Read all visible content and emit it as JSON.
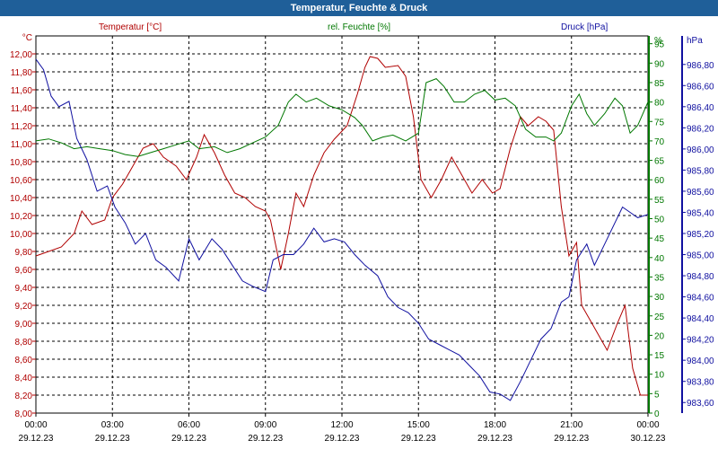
{
  "window": {
    "title": "Temperatur, Feuchte & Druck"
  },
  "colors": {
    "temp": "#b00000",
    "hum": "#007700",
    "press": "#1010a0",
    "grid": "#000000",
    "titlebar": "#1f5f99"
  },
  "chart_data": {
    "type": "line",
    "title": "Temperatur, Feuchte & Druck",
    "grid": true,
    "x": {
      "tick_labels": [
        [
          "00:00",
          "29.12.23"
        ],
        [
          "03:00",
          "29.12.23"
        ],
        [
          "06:00",
          "29.12.23"
        ],
        [
          "09:00",
          "29.12.23"
        ],
        [
          "12:00",
          "29.12.23"
        ],
        [
          "15:00",
          "29.12.23"
        ],
        [
          "18:00",
          "29.12.23"
        ],
        [
          "21:00",
          "29.12.23"
        ],
        [
          "00:00",
          "30.12.23"
        ]
      ],
      "range_hours": [
        0,
        24
      ]
    },
    "axes": {
      "temp": {
        "unit": "°C",
        "ylim": [
          8.0,
          12.0
        ],
        "ticks": [
          "12,00",
          "11,80",
          "11,60",
          "11,40",
          "11,20",
          "11,00",
          "10,80",
          "10,60",
          "10,40",
          "10,20",
          "10,00",
          "9,80",
          "9,60",
          "9,40",
          "9,20",
          "9,00",
          "8,80",
          "8,60",
          "8,40",
          "8,20",
          "8,00"
        ]
      },
      "hum": {
        "unit": "%",
        "ylim": [
          0,
          97
        ],
        "ticks": [
          "95",
          "90",
          "85",
          "80",
          "75",
          "70",
          "65",
          "60",
          "55",
          "50",
          "45",
          "40",
          "35",
          "30",
          "25",
          "20",
          "15",
          "10",
          "5",
          "0"
        ]
      },
      "press": {
        "unit": "hPa",
        "ylim": [
          983.5,
          986.9
        ],
        "ticks": [
          "986,80",
          "986,60",
          "986,40",
          "986,20",
          "986,00",
          "985,80",
          "985,60",
          "985,40",
          "985,20",
          "985,00",
          "984,80",
          "984,60",
          "984,40",
          "984,20",
          "984,00",
          "983,80",
          "983,60"
        ]
      }
    },
    "series": [
      {
        "name": "Temperatur [°C]",
        "axis": "temp",
        "points": [
          [
            0,
            9.75
          ],
          [
            0.5,
            9.8
          ],
          [
            1,
            9.85
          ],
          [
            1.5,
            10.0
          ],
          [
            1.8,
            10.25
          ],
          [
            2.2,
            10.1
          ],
          [
            2.7,
            10.15
          ],
          [
            3,
            10.4
          ],
          [
            3.4,
            10.55
          ],
          [
            3.8,
            10.75
          ],
          [
            4.2,
            10.95
          ],
          [
            4.6,
            11.0
          ],
          [
            5,
            10.85
          ],
          [
            5.5,
            10.75
          ],
          [
            5.9,
            10.6
          ],
          [
            6.3,
            10.85
          ],
          [
            6.6,
            11.1
          ],
          [
            7,
            10.9
          ],
          [
            7.4,
            10.65
          ],
          [
            7.8,
            10.45
          ],
          [
            8.2,
            10.4
          ],
          [
            8.6,
            10.3
          ],
          [
            9,
            10.25
          ],
          [
            9.2,
            10.15
          ],
          [
            9.6,
            9.6
          ],
          [
            9.9,
            10.0
          ],
          [
            10.2,
            10.45
          ],
          [
            10.5,
            10.3
          ],
          [
            10.9,
            10.65
          ],
          [
            11.3,
            10.9
          ],
          [
            11.7,
            11.05
          ],
          [
            12.2,
            11.2
          ],
          [
            12.6,
            11.55
          ],
          [
            12.9,
            11.85
          ],
          [
            13.1,
            11.97
          ],
          [
            13.4,
            11.95
          ],
          [
            13.7,
            11.85
          ],
          [
            14.2,
            11.87
          ],
          [
            14.5,
            11.75
          ],
          [
            14.8,
            11.3
          ],
          [
            15.1,
            10.6
          ],
          [
            15.5,
            10.4
          ],
          [
            15.9,
            10.6
          ],
          [
            16.3,
            10.85
          ],
          [
            16.7,
            10.65
          ],
          [
            17.1,
            10.45
          ],
          [
            17.5,
            10.6
          ],
          [
            17.9,
            10.45
          ],
          [
            18.2,
            10.5
          ],
          [
            18.6,
            10.95
          ],
          [
            19,
            11.3
          ],
          [
            19.3,
            11.2
          ],
          [
            19.7,
            11.3
          ],
          [
            20,
            11.25
          ],
          [
            20.3,
            11.15
          ],
          [
            20.6,
            10.3
          ],
          [
            20.9,
            9.75
          ],
          [
            21.2,
            9.9
          ],
          [
            21.4,
            9.2
          ],
          [
            21.8,
            9.0
          ],
          [
            22.1,
            8.85
          ],
          [
            22.4,
            8.7
          ],
          [
            22.8,
            9.0
          ],
          [
            23.1,
            9.2
          ],
          [
            23.4,
            8.5
          ],
          [
            23.7,
            8.2
          ],
          [
            24,
            8.2
          ]
        ]
      },
      {
        "name": "rel. Feuchte [%]",
        "axis": "hum",
        "points": [
          [
            0,
            70
          ],
          [
            0.5,
            70.5
          ],
          [
            1,
            69.5
          ],
          [
            1.5,
            68
          ],
          [
            2,
            68.5
          ],
          [
            2.5,
            68
          ],
          [
            3,
            67.5
          ],
          [
            3.5,
            66.5
          ],
          [
            4,
            66
          ],
          [
            4.5,
            67
          ],
          [
            5,
            68
          ],
          [
            5.5,
            69
          ],
          [
            6,
            70
          ],
          [
            6.4,
            68
          ],
          [
            7,
            68.5
          ],
          [
            7.5,
            67
          ],
          [
            8,
            68
          ],
          [
            8.5,
            69.5
          ],
          [
            9,
            71
          ],
          [
            9.5,
            74
          ],
          [
            9.9,
            80
          ],
          [
            10.2,
            82
          ],
          [
            10.6,
            80
          ],
          [
            11,
            81
          ],
          [
            11.5,
            79
          ],
          [
            12,
            78
          ],
          [
            12.5,
            76
          ],
          [
            12.8,
            74
          ],
          [
            13.2,
            70
          ],
          [
            13.6,
            71
          ],
          [
            14,
            71.5
          ],
          [
            14.5,
            70
          ],
          [
            15,
            72
          ],
          [
            15.3,
            85
          ],
          [
            15.7,
            86
          ],
          [
            16,
            84
          ],
          [
            16.4,
            80
          ],
          [
            16.8,
            80
          ],
          [
            17.2,
            82
          ],
          [
            17.6,
            83
          ],
          [
            18,
            80.5
          ],
          [
            18.4,
            81
          ],
          [
            18.8,
            79
          ],
          [
            19.2,
            73
          ],
          [
            19.6,
            71
          ],
          [
            20,
            71
          ],
          [
            20.3,
            70
          ],
          [
            20.6,
            72
          ],
          [
            21,
            79
          ],
          [
            21.3,
            82
          ],
          [
            21.6,
            77
          ],
          [
            21.9,
            74
          ],
          [
            22.3,
            77
          ],
          [
            22.7,
            81
          ],
          [
            23,
            79
          ],
          [
            23.3,
            72
          ],
          [
            23.6,
            74
          ],
          [
            24,
            80
          ]
        ]
      },
      {
        "name": "Druck [hPa]",
        "axis": "press",
        "points": [
          [
            0,
            986.85
          ],
          [
            0.3,
            986.75
          ],
          [
            0.6,
            986.5
          ],
          [
            0.9,
            986.4
          ],
          [
            1.3,
            986.45
          ],
          [
            1.6,
            986.1
          ],
          [
            2,
            985.9
          ],
          [
            2.4,
            985.6
          ],
          [
            2.8,
            985.65
          ],
          [
            3.1,
            985.45
          ],
          [
            3.5,
            985.3
          ],
          [
            3.9,
            985.1
          ],
          [
            4.3,
            985.2
          ],
          [
            4.7,
            984.95
          ],
          [
            5.1,
            984.88
          ],
          [
            5.6,
            984.75
          ],
          [
            6,
            985.15
          ],
          [
            6.4,
            984.95
          ],
          [
            6.9,
            985.15
          ],
          [
            7.3,
            985.05
          ],
          [
            7.7,
            984.9
          ],
          [
            8.1,
            984.75
          ],
          [
            8.5,
            984.7
          ],
          [
            9,
            984.65
          ],
          [
            9.3,
            984.95
          ],
          [
            9.7,
            985.0
          ],
          [
            10.1,
            985.0
          ],
          [
            10.5,
            985.1
          ],
          [
            10.9,
            985.25
          ],
          [
            11.3,
            985.12
          ],
          [
            11.7,
            985.15
          ],
          [
            12.1,
            985.12
          ],
          [
            12.5,
            985.0
          ],
          [
            12.9,
            984.9
          ],
          [
            13.4,
            984.8
          ],
          [
            13.8,
            984.6
          ],
          [
            14.2,
            984.5
          ],
          [
            14.6,
            984.45
          ],
          [
            15,
            984.35
          ],
          [
            15.4,
            984.2
          ],
          [
            15.8,
            984.15
          ],
          [
            16.2,
            984.1
          ],
          [
            16.6,
            984.05
          ],
          [
            17,
            983.95
          ],
          [
            17.4,
            983.85
          ],
          [
            17.8,
            983.7
          ],
          [
            18.2,
            983.68
          ],
          [
            18.6,
            983.62
          ],
          [
            19,
            983.8
          ],
          [
            19.4,
            984.0
          ],
          [
            19.8,
            984.2
          ],
          [
            20.2,
            984.3
          ],
          [
            20.6,
            984.55
          ],
          [
            20.9,
            984.6
          ],
          [
            21.2,
            984.95
          ],
          [
            21.6,
            985.1
          ],
          [
            21.9,
            984.9
          ],
          [
            22.3,
            985.1
          ],
          [
            22.7,
            985.3
          ],
          [
            23,
            985.45
          ],
          [
            23.3,
            985.4
          ],
          [
            23.6,
            985.35
          ],
          [
            24,
            985.38
          ]
        ]
      }
    ],
    "legend": {
      "temp_label": "Temperatur [°C]",
      "hum_label": "rel. Feuchte [%]",
      "press_label": "Druck [hPa]"
    }
  }
}
